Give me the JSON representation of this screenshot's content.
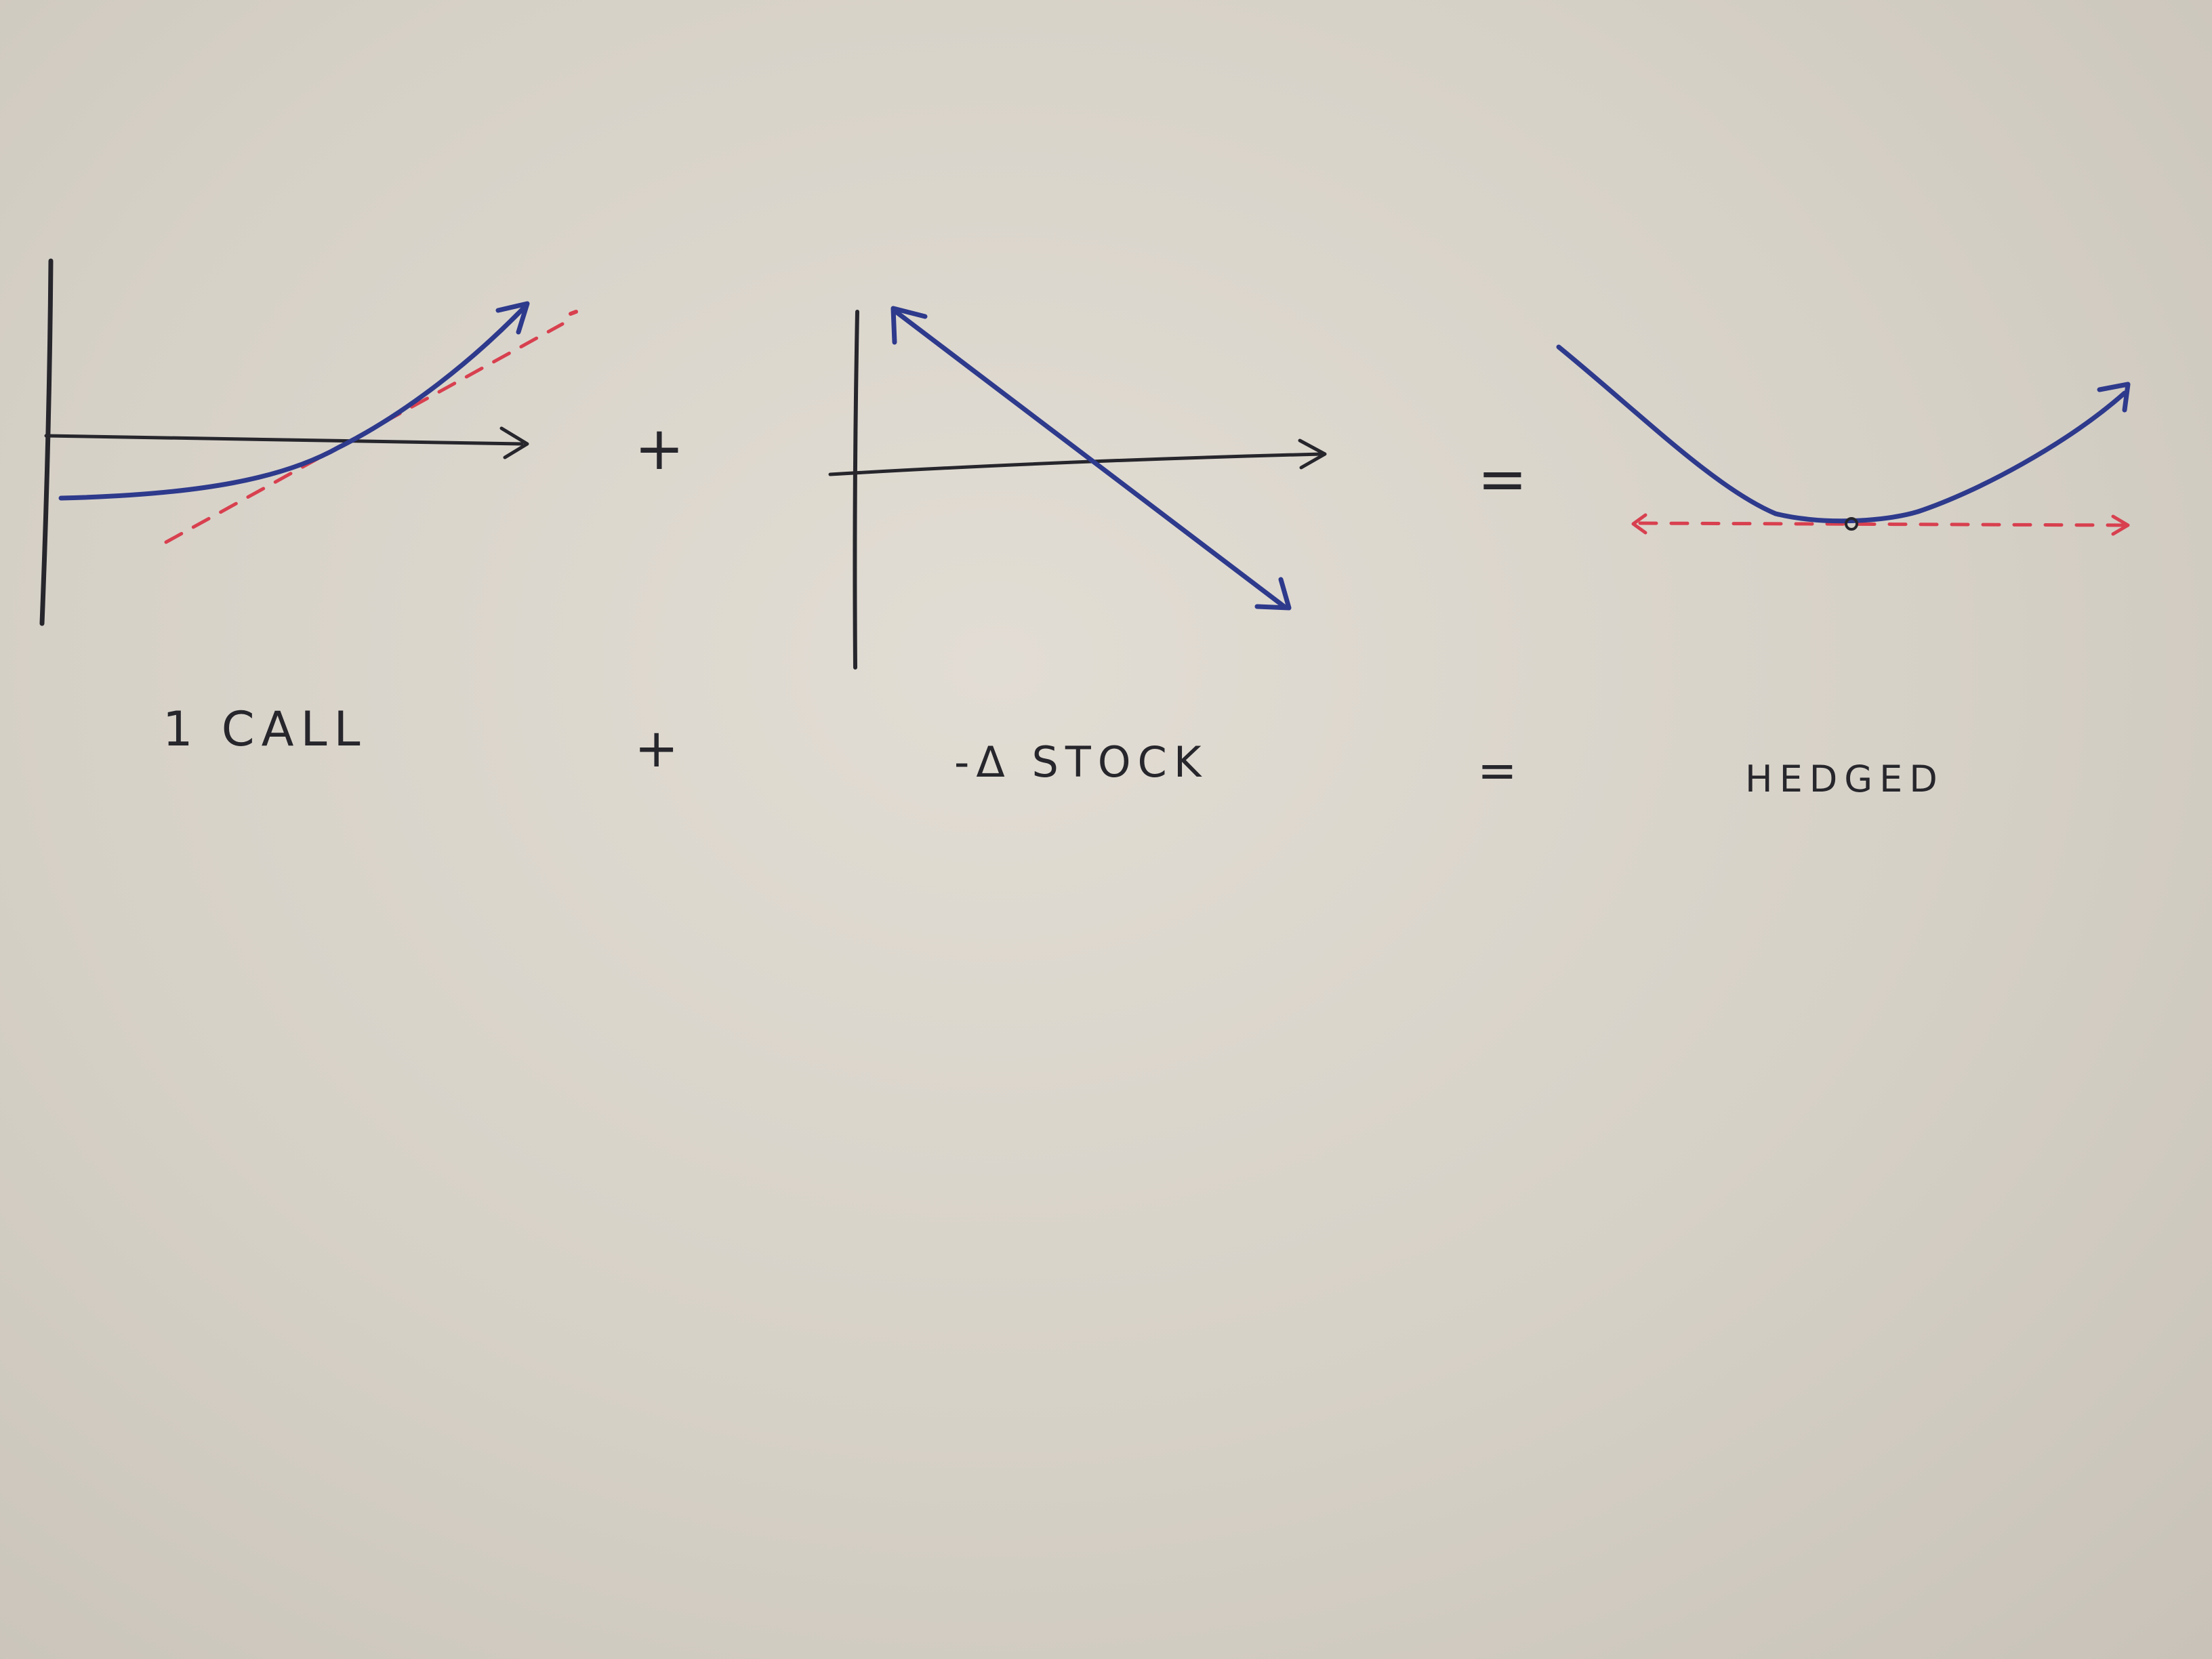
{
  "labels": {
    "call": "1 CALL",
    "stock": "-Δ STOCK",
    "hedged": "HEDGED"
  },
  "operators": {
    "plus": "+",
    "equals": "="
  },
  "colors": {
    "ink": "#26262c",
    "curve": "#2e3a8c",
    "tangent": "#d8404f",
    "paper": "#dcd7ce"
  }
}
